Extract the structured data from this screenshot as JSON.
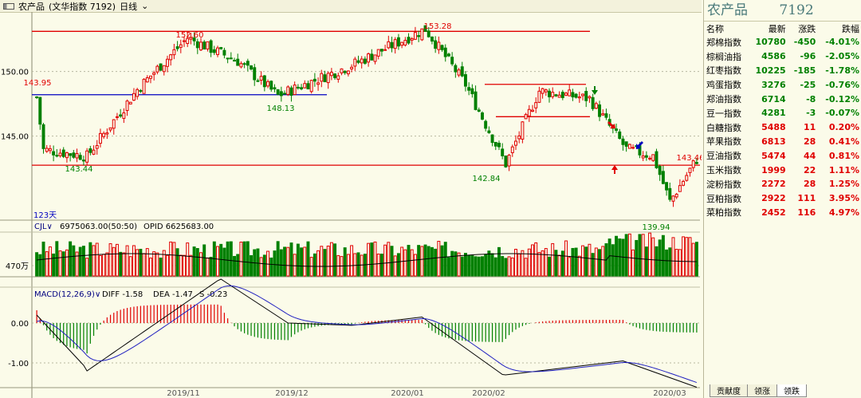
{
  "header": {
    "title": "农产品",
    "subtitle": "(文华指数 7192)",
    "period": "日线"
  },
  "main_chart": {
    "price_labels": [
      "150.00",
      "145.00"
    ],
    "annotations": [
      "152.60",
      "153.28",
      "143.95",
      "148.13",
      "143.44",
      "142.84",
      "143.46",
      "139.94"
    ],
    "days_label": "123天"
  },
  "volume_panel": {
    "indicator": "CJL",
    "values_text": "6975063.00(50:50)",
    "opid_text": "OPID 6625683.00",
    "axis_label": "470万"
  },
  "macd_panel": {
    "indicator": "MACD(12,26,9)",
    "diff_text": "DIFF -1.58",
    "dea_text": "DEA -1.47",
    "s_text": "S -0.23",
    "axis_labels": [
      "0.00",
      "-1.00"
    ]
  },
  "dates": [
    "2019/11",
    "2019/12",
    "2020/01",
    "2020/02",
    "2020/03"
  ],
  "right_panel": {
    "title": "农产品",
    "code": "7192",
    "headers": [
      "名称",
      "最新",
      "涨跌",
      "跌幅"
    ],
    "rows": [
      {
        "name": "郑棉指数",
        "last": "10780",
        "chg": "-450",
        "pct": "-4.01%"
      },
      {
        "name": "棕榈油指",
        "last": "4586",
        "chg": "-96",
        "pct": "-2.05%"
      },
      {
        "name": "红枣指数",
        "last": "10225",
        "chg": "-185",
        "pct": "-1.78%"
      },
      {
        "name": "鸡蛋指数",
        "last": "3276",
        "chg": "-25",
        "pct": "-0.76%"
      },
      {
        "name": "郑油指数",
        "last": "6714",
        "chg": "-8",
        "pct": "-0.12%"
      },
      {
        "name": "豆一指数",
        "last": "4281",
        "chg": "-3",
        "pct": "-0.07%"
      },
      {
        "name": "白糖指数",
        "last": "5488",
        "chg": "11",
        "pct": "0.20%"
      },
      {
        "name": "苹果指数",
        "last": "6813",
        "chg": "28",
        "pct": "0.41%"
      },
      {
        "name": "豆油指数",
        "last": "5474",
        "chg": "44",
        "pct": "0.81%"
      },
      {
        "name": "玉米指数",
        "last": "1999",
        "chg": "22",
        "pct": "1.11%"
      },
      {
        "name": "淀粉指数",
        "last": "2272",
        "chg": "28",
        "pct": "1.25%"
      },
      {
        "name": "豆粕指数",
        "last": "2922",
        "chg": "111",
        "pct": "3.95%"
      },
      {
        "name": "菜粕指数",
        "last": "2452",
        "chg": "116",
        "pct": "4.97%"
      }
    ],
    "tabs": [
      "贡献度",
      "领涨",
      "领跌"
    ]
  },
  "colors": {
    "up": "#e00000",
    "down": "#008000",
    "support_line": "#0000c0",
    "grid": "#b8b8a0"
  },
  "chart_data": {
    "type": "candlestick",
    "price_anchors": [
      {
        "index": 2,
        "value": 143.95
      },
      {
        "index": 15,
        "value": 143.44
      },
      {
        "index": 45,
        "value": 152.6
      },
      {
        "index": 72,
        "value": 148.13
      },
      {
        "index": 116,
        "value": 153.28
      },
      {
        "index": 140,
        "value": 142.84
      },
      {
        "index": 184,
        "value": 143.46
      },
      {
        "index": 189,
        "value": 139.94
      }
    ],
    "ylim": [
      138.5,
      154.6
    ],
    "volume_axis": "470万",
    "macd": {
      "diff": -1.58,
      "dea": -1.47,
      "s": -0.23,
      "ylim": [
        -1.6,
        0.9
      ]
    }
  }
}
